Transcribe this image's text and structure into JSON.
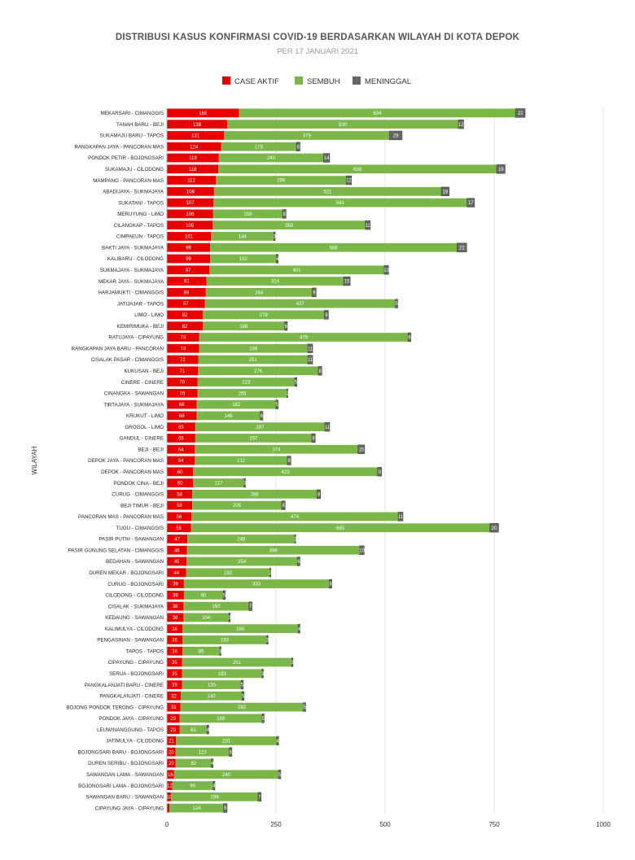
{
  "chart_data": {
    "type": "bar",
    "orientation": "horizontal",
    "stacked": true,
    "title": "DISTRIBUSI KASUS KONFIRMASI COVID-19 BERDASARKAN WILAYAH DI KOTA DEPOK",
    "subtitle": "PER 17 JANUARI 2021",
    "xlabel": "",
    "ylabel": "WILAYAH",
    "xlim": [
      0,
      1000
    ],
    "xticks": [
      0,
      250,
      500,
      750,
      1000
    ],
    "grid": true,
    "legend_position": "top",
    "colors": {
      "CASE AKTIF": "#e80000",
      "SEMBUH": "#7ab648",
      "MENINGGAL": "#666666"
    },
    "categories": [
      "MEKARSARI - CIMANGGIS",
      "TANAH BARU - BEJI",
      "SUKAMAJU BARU - TAPOS",
      "RANGKAPAN JAYA - PANCORAN MAS",
      "PONDOK PETIR - BOJONGSARI",
      "SUKAMAJU - CILODONG",
      "MAMPANG - PANCORAN MAS",
      "ABADIJAYA - SUKMAJAYA",
      "SUKATANI - TAPOS",
      "MERUYUNG - LIMO",
      "CILANGKAP - TAPOS",
      "CIMPAEUN - TAPOS",
      "BAKTI JAYA - SUKMAJAYA",
      "KALIBARU - CILODONG",
      "SUKMAJAYA - SUKMAJAYA",
      "MEKAR JAYA - SUKMAJAYA",
      "HARJAMUKTI - CIMANGGIS",
      "JATIJAJAR - TAPOS",
      "LIMO - LIMO",
      "KEMIRIMUKA - BEJI",
      "RATUJAYA - CIPAYUNG",
      "RANGKAPAN JAYA BARU - PANCORAN",
      "CISALAK PASAR - CIMANGGIS",
      "KUKUSAN - BEJI",
      "CINERE - CINERE",
      "CINANGKA - SAWANGAN",
      "TIRTAJAYA - SUKMAJAYA",
      "KRUKUT - LIMO",
      "GROGOL - LIMO",
      "GANDUL - CINERE",
      "BEJI - BEJI",
      "DEPOK JAYA - PANCORAN MAS",
      "DEPOK - PANCORAN MAS",
      "PONDOK CINA - BEJI",
      "CURUG - CIMANGGIS",
      "BEJI TIMUR - BEJI",
      "PANCORAN MAS - PANCORAN MAS",
      "TUGU - CIMANGGIS",
      "PASIR PUTIH - SAWANGAN",
      "PASIR GUNUNG SELATAN - CIMANGGIS",
      "BEDAHAN - SAWANGAN",
      "DUREN MEKAR - BOJONGSARI",
      "CURUG - BOJONGSARI",
      "CILODONG - CILODONG",
      "CISALAK - SUKMAJAYA",
      "KEDAUNG - SAWANGAN",
      "KALIMULYA - CILODONG",
      "PENGASINAN - SAWANGAN",
      "TAPOS - TAPOS",
      "CIPAYUNG - CIPAYUNG",
      "SERUA - BOJONGSARI",
      "PANGKALANJATI BARU - CINERE",
      "PANGKALANJATI - CINERE",
      "BOJONG PONDOK TERONG - CIPAYUNG",
      "PONDOK JAYA - CIPAYUNG",
      "LEUWINANGGUNG - TAPOS",
      "JATIMULYA - CILODONG",
      "BOJONGSARI BARU - BOJONGSARI",
      "DUREN SERIBU - BOJONGSARI",
      "SAWANGAN LAMA - SAWANGAN",
      "BOJONGSARI LAMA - BOJONGSARI",
      "SAWANGAN BARU - SAWANGAN",
      "CIPAYUNG JAYA - CIPAYUNG"
    ],
    "series": [
      {
        "name": "CASE AKTIF",
        "values": [
          165,
          138,
          131,
          124,
          119,
          118,
          112,
          108,
          107,
          106,
          105,
          101,
          99,
          99,
          97,
          91,
          89,
          87,
          82,
          82,
          74,
          74,
          72,
          71,
          70,
          70,
          68,
          68,
          65,
          65,
          64,
          64,
          60,
          60,
          58,
          58,
          56,
          55,
          47,
          46,
          45,
          44,
          39,
          39,
          38,
          38,
          36,
          36,
          36,
          35,
          35,
          35,
          32,
          31,
          29,
          29,
          21,
          20,
          20,
          16,
          12,
          10,
          6
        ]
      },
      {
        "name": "SEMBUH",
        "values": [
          634,
          530,
          379,
          173,
          240,
          638,
          299,
          521,
          581,
          159,
          350,
          144,
          566,
          152,
          401,
          314,
          244,
          437,
          279,
          188,
          479,
          249,
          251,
          276,
          223,
          205,
          182,
          146,
          297,
          267,
          374,
          212,
          423,
          117,
          286,
          205,
          474,
          685,
          246,
          396,
          254,
          192,
          333,
          90,
          150,
          104,
          265,
          193,
          85,
          251,
          183,
          135,
          140,
          282,
          189,
          63,
          231,
          123,
          82,
          240,
          94,
          199,
          124
        ]
      },
      {
        "name": "MENINGGAL",
        "values": [
          22,
          12,
          29,
          8,
          14,
          19,
          12,
          18,
          17,
          8,
          11,
          3,
          22,
          4,
          10,
          15,
          9,
          5,
          9,
          6,
          6,
          11,
          11,
          8,
          5,
          2,
          5,
          6,
          11,
          8,
          15,
          8,
          9,
          3,
          8,
          8,
          11,
          20,
          2,
          10,
          6,
          2,
          6,
          5,
          7,
          3,
          4,
          3,
          3,
          3,
          3,
          5,
          5,
          5,
          5,
          4,
          4,
          6,
          4,
          5,
          4,
          7,
          8
        ]
      }
    ]
  }
}
